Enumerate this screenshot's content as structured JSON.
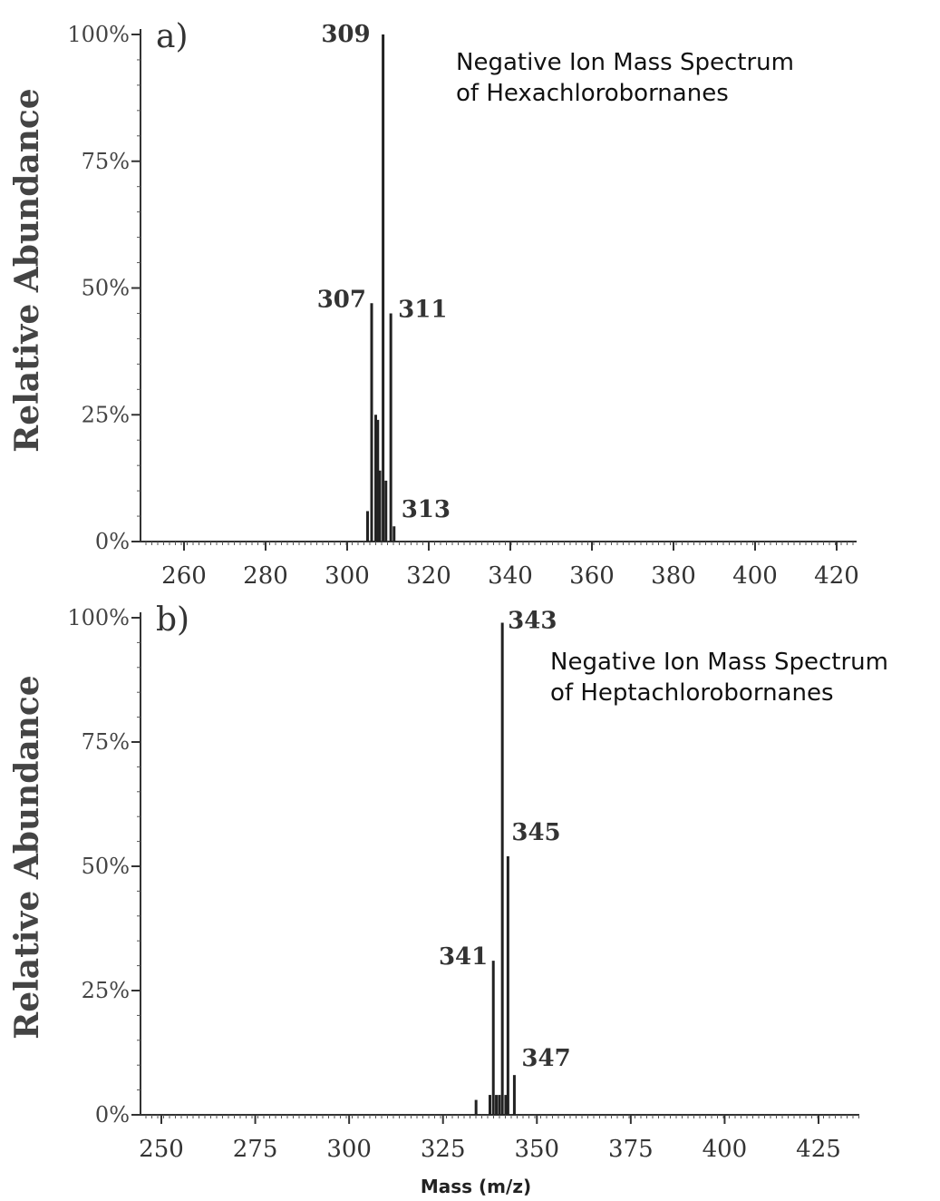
{
  "x_axis_label": "Mass (m/z)",
  "chart_data": [
    {
      "type": "bar",
      "panel_label": "a)",
      "title": "Negative Ion Mass Spectrum\nof Hexachlorobornanes",
      "ylabel": "Relative Abundance",
      "xlabel": "Mass (m/z)",
      "xlim": [
        245,
        430
      ],
      "ylim": [
        0,
        100
      ],
      "x_ticks": [
        260,
        280,
        300,
        320,
        340,
        360,
        380,
        400,
        420
      ],
      "x_tick_labels": [
        "260",
        "280",
        "300",
        "320",
        "340",
        "360",
        "380",
        "400",
        "420"
      ],
      "y_ticks": [
        0,
        25,
        50,
        75,
        100
      ],
      "y_tick_labels": [
        "0%",
        "25%",
        "50%",
        "75%",
        "100%"
      ],
      "grid": false,
      "peaks": [
        {
          "x": 305.0,
          "y": 6
        },
        {
          "x": 306.0,
          "y": 47
        },
        {
          "x": 307.0,
          "y": 25
        },
        {
          "x": 307.5,
          "y": 24
        },
        {
          "x": 308.0,
          "y": 14
        },
        {
          "x": 308.8,
          "y": 100
        },
        {
          "x": 309.5,
          "y": 12
        },
        {
          "x": 310.7,
          "y": 45
        },
        {
          "x": 311.5,
          "y": 3
        }
      ],
      "peak_labels": [
        {
          "x": 306.0,
          "y": 47,
          "text": "307"
        },
        {
          "x": 308.8,
          "y": 100,
          "text": "309"
        },
        {
          "x": 310.7,
          "y": 45,
          "text": "311"
        },
        {
          "x": 311.5,
          "y": 3,
          "text": "313"
        }
      ]
    },
    {
      "type": "bar",
      "panel_label": "b)",
      "title": "Negative Ion Mass Spectrum\nof Heptachlorobornanes",
      "ylabel": "Relative Abundance",
      "xlabel": "Mass (m/z)",
      "xlim": [
        245,
        442
      ],
      "ylim": [
        0,
        100
      ],
      "x_ticks": [
        250,
        275,
        300,
        325,
        350,
        375,
        400,
        425
      ],
      "x_tick_labels": [
        "250",
        "275",
        "300",
        "325",
        "350",
        "375",
        "400",
        "425"
      ],
      "y_ticks": [
        0,
        25,
        50,
        75,
        100
      ],
      "y_tick_labels": [
        "0%",
        "25%",
        "50%",
        "75%",
        "100%"
      ],
      "grid": false,
      "peaks": [
        {
          "x": 333.8,
          "y": 3
        },
        {
          "x": 337.5,
          "y": 4
        },
        {
          "x": 338.4,
          "y": 31
        },
        {
          "x": 339.2,
          "y": 4
        },
        {
          "x": 340.0,
          "y": 4
        },
        {
          "x": 340.8,
          "y": 99
        },
        {
          "x": 341.7,
          "y": 4
        },
        {
          "x": 342.3,
          "y": 52
        },
        {
          "x": 344.0,
          "y": 8
        }
      ],
      "peak_labels": [
        {
          "x": 338.4,
          "y": 31,
          "text": "341"
        },
        {
          "x": 340.8,
          "y": 99,
          "text": "343"
        },
        {
          "x": 342.3,
          "y": 52,
          "text": "345"
        },
        {
          "x": 344.0,
          "y": 8,
          "text": "347"
        }
      ]
    }
  ]
}
